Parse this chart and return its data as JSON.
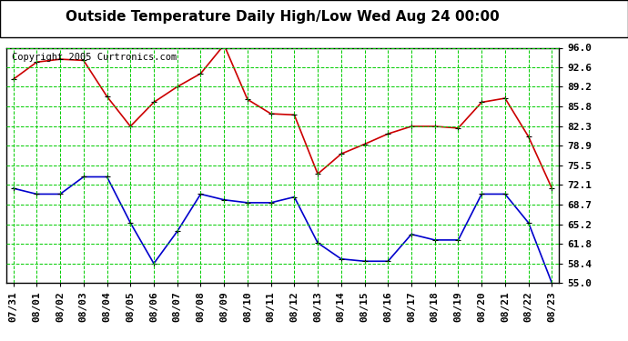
{
  "title": "Outside Temperature Daily High/Low Wed Aug 24 00:00",
  "copyright": "Copyright 2005 Curtronics.com",
  "dates": [
    "07/31",
    "08/01",
    "08/02",
    "08/03",
    "08/04",
    "08/05",
    "08/06",
    "08/07",
    "08/08",
    "08/09",
    "08/10",
    "08/11",
    "08/12",
    "08/13",
    "08/14",
    "08/15",
    "08/16",
    "08/17",
    "08/18",
    "08/19",
    "08/20",
    "08/21",
    "08/22",
    "08/23"
  ],
  "high_temps": [
    90.5,
    93.5,
    94.0,
    93.8,
    87.5,
    82.3,
    86.5,
    89.2,
    91.5,
    96.5,
    87.0,
    84.5,
    84.3,
    74.0,
    77.5,
    79.2,
    81.0,
    82.3,
    82.3,
    82.0,
    86.5,
    87.2,
    80.5,
    71.5
  ],
  "low_temps": [
    71.5,
    70.5,
    70.5,
    73.5,
    73.5,
    65.5,
    58.4,
    64.0,
    70.5,
    69.5,
    69.0,
    69.0,
    70.0,
    62.0,
    59.2,
    58.8,
    58.8,
    63.5,
    62.5,
    62.5,
    70.5,
    70.5,
    65.5,
    55.0
  ],
  "high_color": "#cc0000",
  "low_color": "#0000cc",
  "bg_color": "#ffffff",
  "grid_color": "#00cc00",
  "yticks": [
    55.0,
    58.4,
    61.8,
    65.2,
    68.7,
    72.1,
    75.5,
    78.9,
    82.3,
    85.8,
    89.2,
    92.6,
    96.0
  ],
  "ymin": 55.0,
  "ymax": 96.0,
  "title_fontsize": 11,
  "tick_fontsize": 8,
  "copyright_fontsize": 7.5
}
